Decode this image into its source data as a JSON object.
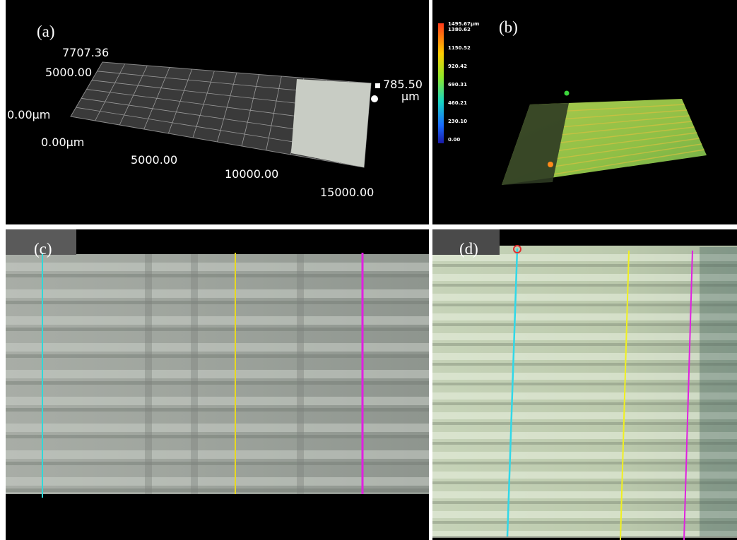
{
  "panels": [
    {
      "label": "(a)",
      "axis_labels": [
        "7707.36",
        "5000.00",
        "0.00µm",
        "0.00µm",
        "5000.00",
        "10000.00",
        "15000.00",
        "785.50",
        "µm"
      ]
    },
    {
      "label": "(b)",
      "colorbar_labels": [
        "1495.67µm",
        "1380.62",
        "1150.52",
        "920.42",
        "690.31",
        "460.21",
        "230.10",
        "0.00"
      ]
    },
    {
      "label": "(c)"
    },
    {
      "label": "(d)"
    }
  ]
}
